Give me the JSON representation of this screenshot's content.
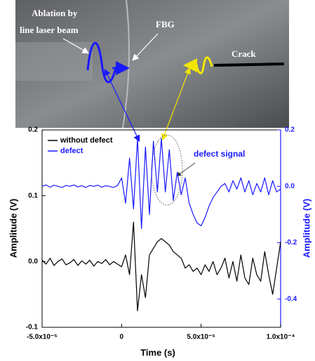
{
  "photo_labels": [
    "Ablation by",
    "line laser beam",
    "FBG",
    "Crack"
  ],
  "chart_data": {
    "type": "line",
    "xlabel": "Time (s)",
    "ylabel": "Amplitude (V)",
    "y2label": "Amplitude (V)",
    "annotation": "defect signal",
    "x": [
      -5e-05,
      -4.75e-05,
      -4.5e-05,
      -4.25e-05,
      -4e-05,
      -3.75e-05,
      -3.5e-05,
      -3.25e-05,
      -3e-05,
      -2.75e-05,
      -2.5e-05,
      -2.25e-05,
      -2e-05,
      -1.75e-05,
      -1.5e-05,
      -1.25e-05,
      -1e-05,
      -7.5e-06,
      -5e-06,
      -2.5e-06,
      0,
      2.5e-06,
      5e-06,
      7.5e-06,
      1e-05,
      1.25e-05,
      1.5e-05,
      1.75e-05,
      2e-05,
      2.25e-05,
      2.5e-05,
      2.75e-05,
      3e-05,
      3.25e-05,
      3.5e-05,
      3.75e-05,
      4e-05,
      4.25e-05,
      4.5e-05,
      4.75e-05,
      5e-05,
      5.25e-05,
      5.5e-05,
      5.75e-05,
      6e-05,
      6.25e-05,
      6.5e-05,
      6.75e-05,
      7e-05,
      7.25e-05,
      7.5e-05,
      7.75e-05,
      8e-05,
      8.25e-05,
      8.5e-05,
      8.75e-05,
      9e-05,
      9.25e-05,
      9.5e-05,
      9.75e-05,
      0.0001
    ],
    "series": [
      {
        "name": "without defect",
        "color": "#000000",
        "values": [
          0.002,
          -0.004,
          0.005,
          -0.006,
          0.0,
          0.004,
          -0.005,
          -0.002,
          0.003,
          -0.006,
          0.001,
          -0.004,
          0.002,
          -0.007,
          0.0,
          -0.003,
          0.003,
          -0.005,
          0.0,
          -0.004,
          -0.008,
          0.01,
          -0.02,
          0.06,
          -0.075,
          -0.02,
          -0.055,
          0.01,
          0.02,
          0.03,
          0.035,
          0.03,
          0.025,
          0.015,
          0.01,
          0.005,
          -0.01,
          -0.005,
          -0.015,
          -0.01,
          -0.02,
          -0.005,
          -0.015,
          0.0,
          -0.02,
          -0.01,
          0.005,
          -0.025,
          0.0,
          -0.03,
          0.01,
          -0.025,
          -0.035,
          0.005,
          -0.02,
          -0.03,
          0.015,
          -0.02,
          -0.05,
          -0.01,
          0.03
        ]
      },
      {
        "name": "defect",
        "color": "#1a1aff",
        "axis": "y2",
        "values": [
          0.0,
          0.005,
          -0.003,
          0.004,
          0.0,
          -0.004,
          0.003,
          0.0,
          0.005,
          -0.002,
          0.002,
          -0.004,
          0.003,
          0.0,
          0.004,
          -0.003,
          0.002,
          0.0,
          -0.004,
          0.003,
          0.03,
          -0.06,
          0.1,
          -0.08,
          0.17,
          -0.15,
          0.14,
          -0.1,
          0.16,
          -0.02,
          0.17,
          -0.02,
          0.13,
          -0.05,
          0.05,
          -0.03,
          0.03,
          -0.06,
          -0.1,
          -0.13,
          -0.14,
          -0.11,
          -0.07,
          -0.04,
          -0.02,
          0.0,
          0.01,
          -0.02,
          0.02,
          -0.01,
          0.03,
          -0.02,
          0.02,
          -0.03,
          0.01,
          -0.02,
          0.03,
          -0.03,
          0.02,
          -0.02,
          -0.01
        ]
      }
    ],
    "xlim": [
      -5e-05,
      0.0001
    ],
    "xticks": [
      {
        "value": -5e-05,
        "label": "-5.0x10⁻⁵"
      },
      0,
      {
        "value": 5e-05,
        "label": "5.0x10⁻⁵"
      },
      {
        "value": 0.0001,
        "label": "1.0x10⁻⁴"
      }
    ],
    "ylim": [
      -0.1,
      0.2
    ],
    "yticks": [
      -0.1,
      {
        "value": 0,
        "label": "0.0"
      },
      0.1,
      0.2
    ],
    "y2lim": [
      -0.5,
      0.2
    ],
    "y2ticks": [
      -0.4,
      -0.2,
      {
        "value": 0,
        "label": "0.0"
      },
      0.2
    ],
    "legend": "upper left"
  }
}
